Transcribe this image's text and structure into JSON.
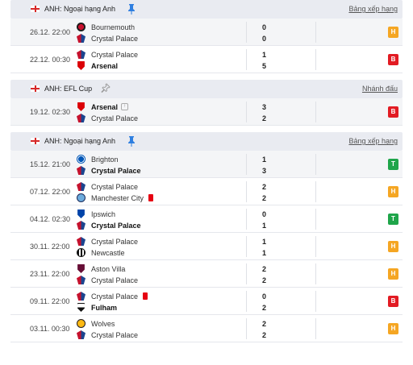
{
  "colors": {
    "win": "#1fa54a",
    "draw": "#f5a623",
    "loss": "#e21b23",
    "header_bg": "#e9ebf1",
    "pin_blue": "#2f7fe0"
  },
  "groups": [
    {
      "competition": "ANH: Ngoại hạng Anh",
      "link": "Bảng xếp hạng",
      "pinned": true,
      "matches": [
        {
          "time": "26.12. 22:00",
          "home": "Bournemouth",
          "away": "Crystal Palace",
          "home_score": "0",
          "away_score": "0",
          "home_bold": false,
          "away_bold": false,
          "result": "H",
          "result_color": "draw",
          "home_logo": "bournemouth",
          "away_logo": "palace"
        },
        {
          "time": "22.12. 00:30",
          "home": "Crystal Palace",
          "away": "Arsenal",
          "home_score": "1",
          "away_score": "5",
          "home_bold": false,
          "away_bold": true,
          "result": "B",
          "result_color": "loss",
          "home_logo": "palace",
          "away_logo": "arsenal"
        }
      ]
    },
    {
      "competition": "ANH: EFL Cup",
      "link": "Nhánh đấu",
      "pinned": false,
      "matches": [
        {
          "time": "19.12. 02:30",
          "home": "Arsenal",
          "away": "Crystal Palace",
          "home_score": "3",
          "away_score": "2",
          "home_bold": true,
          "away_bold": false,
          "result": "B",
          "result_color": "loss",
          "home_logo": "arsenal",
          "away_logo": "palace",
          "home_note": true
        }
      ]
    },
    {
      "competition": "ANH: Ngoại hạng Anh",
      "link": "Bảng xếp hạng",
      "pinned": true,
      "matches": [
        {
          "time": "15.12. 21:00",
          "home": "Brighton",
          "away": "Crystal Palace",
          "home_score": "1",
          "away_score": "3",
          "home_bold": false,
          "away_bold": true,
          "result": "T",
          "result_color": "win",
          "home_logo": "brighton",
          "away_logo": "palace"
        },
        {
          "time": "07.12. 22:00",
          "home": "Crystal Palace",
          "away": "Manchester City",
          "home_score": "2",
          "away_score": "2",
          "home_bold": false,
          "away_bold": false,
          "result": "H",
          "result_color": "draw",
          "home_logo": "palace",
          "away_logo": "mancity",
          "away_redcard": true
        },
        {
          "time": "04.12. 02:30",
          "home": "Ipswich",
          "away": "Crystal Palace",
          "home_score": "0",
          "away_score": "1",
          "home_bold": false,
          "away_bold": true,
          "result": "T",
          "result_color": "win",
          "home_logo": "ipswich",
          "away_logo": "palace"
        },
        {
          "time": "30.11. 22:00",
          "home": "Crystal Palace",
          "away": "Newcastle",
          "home_score": "1",
          "away_score": "1",
          "home_bold": false,
          "away_bold": false,
          "result": "H",
          "result_color": "draw",
          "home_logo": "palace",
          "away_logo": "newcastle"
        },
        {
          "time": "23.11. 22:00",
          "home": "Aston Villa",
          "away": "Crystal Palace",
          "home_score": "2",
          "away_score": "2",
          "home_bold": false,
          "away_bold": false,
          "result": "H",
          "result_color": "draw",
          "home_logo": "villa",
          "away_logo": "palace"
        },
        {
          "time": "09.11. 22:00",
          "home": "Crystal Palace",
          "away": "Fulham",
          "home_score": "0",
          "away_score": "2",
          "home_bold": false,
          "away_bold": true,
          "result": "B",
          "result_color": "loss",
          "home_logo": "palace",
          "away_logo": "fulham",
          "home_redcard": true
        },
        {
          "time": "03.11. 00:30",
          "home": "Wolves",
          "away": "Crystal Palace",
          "home_score": "2",
          "away_score": "2",
          "home_bold": false,
          "away_bold": false,
          "result": "H",
          "result_color": "draw",
          "home_logo": "wolves",
          "away_logo": "palace"
        }
      ]
    }
  ]
}
